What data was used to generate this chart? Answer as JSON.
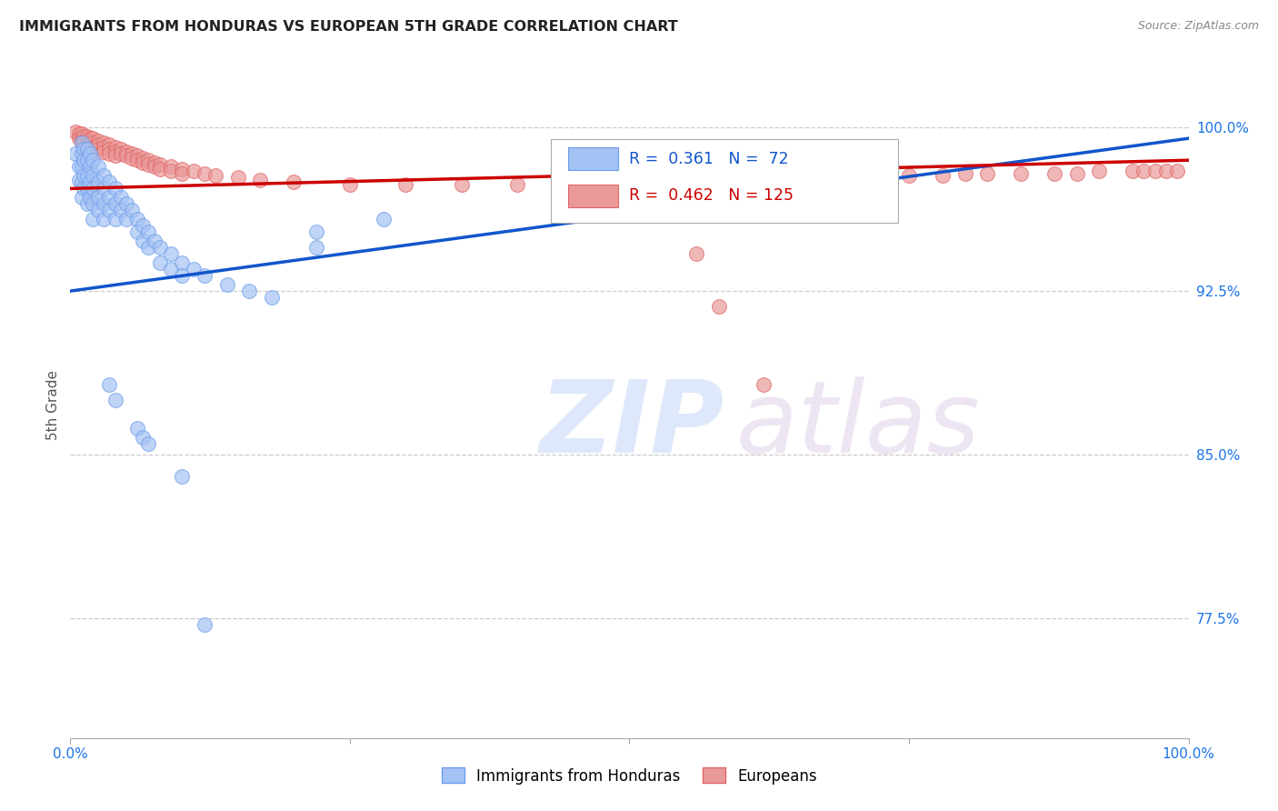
{
  "title": "IMMIGRANTS FROM HONDURAS VS EUROPEAN 5TH GRADE CORRELATION CHART",
  "source": "Source: ZipAtlas.com",
  "ylabel": "5th Grade",
  "ytick_labels": [
    "100.0%",
    "92.5%",
    "85.0%",
    "77.5%"
  ],
  "ytick_values": [
    1.0,
    0.925,
    0.85,
    0.775
  ],
  "x_min": 0.0,
  "x_max": 1.0,
  "y_min": 0.72,
  "y_max": 1.025,
  "blue_color": "#a4c2f4",
  "pink_color": "#ea9999",
  "blue_edge_color": "#6d9eeb",
  "pink_edge_color": "#e06666",
  "blue_line_color": "#1155cc",
  "pink_line_color": "#cc0000",
  "legend_blue_label": "Immigrants from Honduras",
  "legend_pink_label": "Europeans",
  "blue_scatter": [
    [
      0.005,
      0.988
    ],
    [
      0.008,
      0.982
    ],
    [
      0.008,
      0.976
    ],
    [
      0.01,
      0.993
    ],
    [
      0.01,
      0.988
    ],
    [
      0.01,
      0.982
    ],
    [
      0.01,
      0.975
    ],
    [
      0.01,
      0.968
    ],
    [
      0.012,
      0.99
    ],
    [
      0.012,
      0.985
    ],
    [
      0.012,
      0.978
    ],
    [
      0.012,
      0.972
    ],
    [
      0.015,
      0.99
    ],
    [
      0.015,
      0.985
    ],
    [
      0.015,
      0.978
    ],
    [
      0.015,
      0.972
    ],
    [
      0.015,
      0.965
    ],
    [
      0.018,
      0.988
    ],
    [
      0.018,
      0.982
    ],
    [
      0.018,
      0.975
    ],
    [
      0.018,
      0.968
    ],
    [
      0.02,
      0.985
    ],
    [
      0.02,
      0.978
    ],
    [
      0.02,
      0.972
    ],
    [
      0.02,
      0.965
    ],
    [
      0.02,
      0.958
    ],
    [
      0.025,
      0.982
    ],
    [
      0.025,
      0.975
    ],
    [
      0.025,
      0.968
    ],
    [
      0.025,
      0.962
    ],
    [
      0.03,
      0.978
    ],
    [
      0.03,
      0.972
    ],
    [
      0.03,
      0.965
    ],
    [
      0.03,
      0.958
    ],
    [
      0.035,
      0.975
    ],
    [
      0.035,
      0.968
    ],
    [
      0.035,
      0.962
    ],
    [
      0.04,
      0.972
    ],
    [
      0.04,
      0.965
    ],
    [
      0.04,
      0.958
    ],
    [
      0.045,
      0.968
    ],
    [
      0.045,
      0.962
    ],
    [
      0.05,
      0.965
    ],
    [
      0.05,
      0.958
    ],
    [
      0.055,
      0.962
    ],
    [
      0.06,
      0.958
    ],
    [
      0.06,
      0.952
    ],
    [
      0.065,
      0.955
    ],
    [
      0.065,
      0.948
    ],
    [
      0.07,
      0.952
    ],
    [
      0.07,
      0.945
    ],
    [
      0.075,
      0.948
    ],
    [
      0.08,
      0.945
    ],
    [
      0.08,
      0.938
    ],
    [
      0.09,
      0.942
    ],
    [
      0.09,
      0.935
    ],
    [
      0.1,
      0.938
    ],
    [
      0.1,
      0.932
    ],
    [
      0.11,
      0.935
    ],
    [
      0.12,
      0.932
    ],
    [
      0.14,
      0.928
    ],
    [
      0.16,
      0.925
    ],
    [
      0.18,
      0.922
    ],
    [
      0.22,
      0.952
    ],
    [
      0.22,
      0.945
    ],
    [
      0.28,
      0.958
    ],
    [
      0.035,
      0.882
    ],
    [
      0.04,
      0.875
    ],
    [
      0.06,
      0.862
    ],
    [
      0.065,
      0.858
    ],
    [
      0.07,
      0.855
    ],
    [
      0.1,
      0.84
    ],
    [
      0.12,
      0.772
    ]
  ],
  "pink_scatter": [
    [
      0.005,
      0.998
    ],
    [
      0.008,
      0.997
    ],
    [
      0.008,
      0.995
    ],
    [
      0.01,
      0.997
    ],
    [
      0.01,
      0.995
    ],
    [
      0.01,
      0.993
    ],
    [
      0.012,
      0.996
    ],
    [
      0.012,
      0.994
    ],
    [
      0.012,
      0.992
    ],
    [
      0.015,
      0.996
    ],
    [
      0.015,
      0.994
    ],
    [
      0.015,
      0.992
    ],
    [
      0.015,
      0.99
    ],
    [
      0.018,
      0.995
    ],
    [
      0.018,
      0.993
    ],
    [
      0.018,
      0.991
    ],
    [
      0.02,
      0.995
    ],
    [
      0.02,
      0.993
    ],
    [
      0.02,
      0.991
    ],
    [
      0.02,
      0.989
    ],
    [
      0.025,
      0.994
    ],
    [
      0.025,
      0.992
    ],
    [
      0.025,
      0.99
    ],
    [
      0.03,
      0.993
    ],
    [
      0.03,
      0.991
    ],
    [
      0.03,
      0.989
    ],
    [
      0.035,
      0.992
    ],
    [
      0.035,
      0.99
    ],
    [
      0.035,
      0.988
    ],
    [
      0.04,
      0.991
    ],
    [
      0.04,
      0.989
    ],
    [
      0.04,
      0.987
    ],
    [
      0.045,
      0.99
    ],
    [
      0.045,
      0.988
    ],
    [
      0.05,
      0.989
    ],
    [
      0.05,
      0.987
    ],
    [
      0.055,
      0.988
    ],
    [
      0.055,
      0.986
    ],
    [
      0.06,
      0.987
    ],
    [
      0.06,
      0.985
    ],
    [
      0.065,
      0.986
    ],
    [
      0.065,
      0.984
    ],
    [
      0.07,
      0.985
    ],
    [
      0.07,
      0.983
    ],
    [
      0.075,
      0.984
    ],
    [
      0.075,
      0.982
    ],
    [
      0.08,
      0.983
    ],
    [
      0.08,
      0.981
    ],
    [
      0.09,
      0.982
    ],
    [
      0.09,
      0.98
    ],
    [
      0.1,
      0.981
    ],
    [
      0.1,
      0.979
    ],
    [
      0.11,
      0.98
    ],
    [
      0.12,
      0.979
    ],
    [
      0.13,
      0.978
    ],
    [
      0.15,
      0.977
    ],
    [
      0.17,
      0.976
    ],
    [
      0.2,
      0.975
    ],
    [
      0.25,
      0.974
    ],
    [
      0.3,
      0.974
    ],
    [
      0.35,
      0.974
    ],
    [
      0.4,
      0.974
    ],
    [
      0.45,
      0.975
    ],
    [
      0.5,
      0.975
    ],
    [
      0.55,
      0.976
    ],
    [
      0.6,
      0.976
    ],
    [
      0.65,
      0.977
    ],
    [
      0.7,
      0.977
    ],
    [
      0.72,
      0.978
    ],
    [
      0.75,
      0.978
    ],
    [
      0.78,
      0.978
    ],
    [
      0.8,
      0.979
    ],
    [
      0.82,
      0.979
    ],
    [
      0.85,
      0.979
    ],
    [
      0.88,
      0.979
    ],
    [
      0.9,
      0.979
    ],
    [
      0.92,
      0.98
    ],
    [
      0.95,
      0.98
    ],
    [
      0.96,
      0.98
    ],
    [
      0.97,
      0.98
    ],
    [
      0.98,
      0.98
    ],
    [
      0.99,
      0.98
    ],
    [
      0.52,
      0.96
    ],
    [
      0.56,
      0.942
    ],
    [
      0.58,
      0.918
    ],
    [
      0.62,
      0.882
    ]
  ],
  "blue_trendline_x": [
    0.0,
    1.0
  ],
  "blue_trendline_y": [
    0.925,
    0.995
  ],
  "pink_trendline_x": [
    0.0,
    1.0
  ],
  "pink_trendline_y": [
    0.972,
    0.985
  ]
}
